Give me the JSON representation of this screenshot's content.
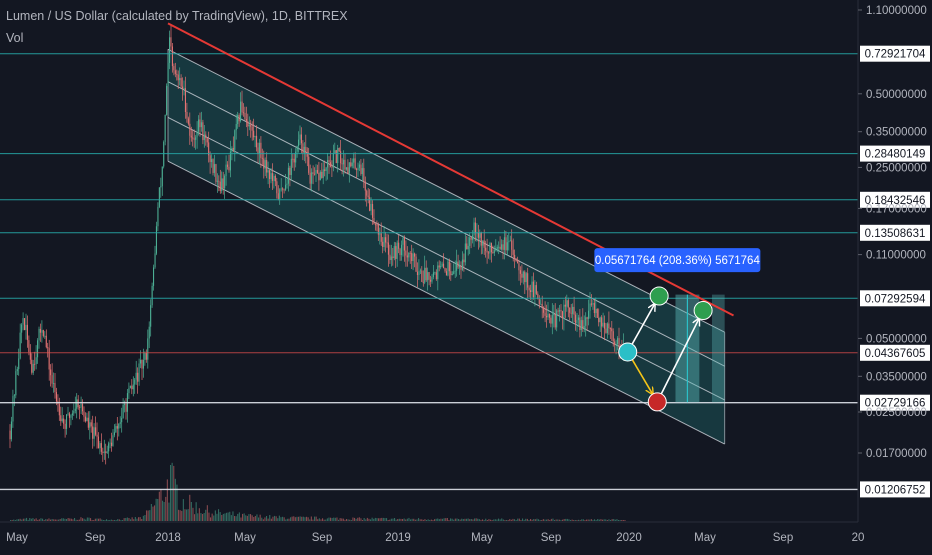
{
  "header": {
    "title": "Lumen / US Dollar (calculated by TradingView), 1D, BITTREX",
    "volume_label": "Vol"
  },
  "colors": {
    "background": "#131722",
    "channel_fill": "#1f6e6e",
    "channel_line": "#d1d4dc",
    "resistance_line": "#e53935",
    "horizontal_level": "#26a6a6",
    "white_level": "#e0e3eb",
    "red_level": "#ef5350",
    "candle_up": "#4caf94",
    "candle_down": "#e57373",
    "label_box": "#2962ff",
    "axis_text": "#b2b5be",
    "green_marker": "#2e9e4f",
    "cyan_marker": "#2bbfc7",
    "red_marker": "#c62828",
    "arrow_white": "#ffffff",
    "arrow_yellow": "#f5c518"
  },
  "chart_data": {
    "type": "candlestick",
    "title": "Lumen / US Dollar (calculated by TradingView), 1D, BITTREX",
    "y_scale": "log",
    "y_tick_labels": [
      "1.10000000",
      "0.50000000",
      "0.35000000",
      "0.25000000",
      "0.17000000",
      "0.11000000",
      "0.05000000",
      "0.03500000",
      "0.02500000",
      "0.01700000"
    ],
    "y_ticks": [
      1.1,
      0.5,
      0.35,
      0.25,
      0.17,
      0.11,
      0.05,
      0.035,
      0.025,
      0.017
    ],
    "x_tick_labels": [
      "May",
      "Sep",
      "2018",
      "May",
      "Sep",
      "2019",
      "May",
      "Sep",
      "2020",
      "May",
      "Sep",
      "20"
    ],
    "x_ticks": [
      "2017-05-01",
      "2017-09-01",
      "2018-01-01",
      "2018-05-01",
      "2018-09-01",
      "2019-01-01",
      "2019-05-01",
      "2019-09-01",
      "2020-01-01",
      "2020-05-01",
      "2020-09-01",
      "2021-01-01"
    ],
    "levels": [
      {
        "label": "0.72921704",
        "value": 0.72921704,
        "style": "teal"
      },
      {
        "label": "0.28480149",
        "value": 0.28480149,
        "style": "teal"
      },
      {
        "label": "0.18432546",
        "value": 0.18432546,
        "style": "teal"
      },
      {
        "label": "0.13508631",
        "value": 0.13508631,
        "style": "teal"
      },
      {
        "label": "0.07292594",
        "value": 0.07292594,
        "style": "teal"
      },
      {
        "label": "0.04367605",
        "value": 0.04367605,
        "style": "red"
      },
      {
        "label": "0.02729166",
        "value": 0.02729166,
        "style": "white"
      },
      {
        "label": "0.01206752",
        "value": 0.01206752,
        "style": "white"
      }
    ],
    "price_path": [
      [
        "2017-04-20",
        0.021
      ],
      [
        "2017-05-10",
        0.062
      ],
      [
        "2017-05-25",
        0.038
      ],
      [
        "2017-06-10",
        0.058
      ],
      [
        "2017-06-25",
        0.033
      ],
      [
        "2017-07-15",
        0.022
      ],
      [
        "2017-08-05",
        0.028
      ],
      [
        "2017-08-25",
        0.021
      ],
      [
        "2017-09-20",
        0.017
      ],
      [
        "2017-10-10",
        0.022
      ],
      [
        "2017-10-25",
        0.028
      ],
      [
        "2017-11-10",
        0.035
      ],
      [
        "2017-11-25",
        0.042
      ],
      [
        "2017-12-05",
        0.075
      ],
      [
        "2017-12-15",
        0.17
      ],
      [
        "2017-12-22",
        0.24
      ],
      [
        "2017-12-28",
        0.45
      ],
      [
        "2018-01-04",
        0.85
      ],
      [
        "2018-01-08",
        0.62
      ],
      [
        "2018-01-15",
        0.58
      ],
      [
        "2018-01-25",
        0.52
      ],
      [
        "2018-02-06",
        0.32
      ],
      [
        "2018-02-20",
        0.38
      ],
      [
        "2018-03-10",
        0.26
      ],
      [
        "2018-03-25",
        0.21
      ],
      [
        "2018-04-10",
        0.28
      ],
      [
        "2018-04-25",
        0.45
      ],
      [
        "2018-05-10",
        0.36
      ],
      [
        "2018-05-30",
        0.27
      ],
      [
        "2018-06-25",
        0.19
      ],
      [
        "2018-07-15",
        0.26
      ],
      [
        "2018-07-30",
        0.33
      ],
      [
        "2018-08-15",
        0.22
      ],
      [
        "2018-09-05",
        0.24
      ],
      [
        "2018-09-25",
        0.28
      ],
      [
        "2018-10-15",
        0.25
      ],
      [
        "2018-11-01",
        0.26
      ],
      [
        "2018-11-15",
        0.18
      ],
      [
        "2018-12-05",
        0.13
      ],
      [
        "2018-12-20",
        0.11
      ],
      [
        "2019-01-10",
        0.12
      ],
      [
        "2019-02-05",
        0.09
      ],
      [
        "2019-03-01",
        0.095
      ],
      [
        "2019-04-01",
        0.1
      ],
      [
        "2019-04-20",
        0.15
      ],
      [
        "2019-05-10",
        0.11
      ],
      [
        "2019-06-01",
        0.125
      ],
      [
        "2019-06-25",
        0.115
      ],
      [
        "2019-07-20",
        0.085
      ],
      [
        "2019-08-15",
        0.07
      ],
      [
        "2019-09-05",
        0.058
      ],
      [
        "2019-09-25",
        0.068
      ],
      [
        "2019-10-20",
        0.054
      ],
      [
        "2019-11-05",
        0.07
      ],
      [
        "2019-11-20",
        0.058
      ],
      [
        "2019-12-10",
        0.049
      ],
      [
        "2019-12-25",
        0.046
      ]
    ],
    "volume_path": [
      [
        "2017-04-20",
        0.02
      ],
      [
        "2017-05-15",
        0.05
      ],
      [
        "2017-07-01",
        0.04
      ],
      [
        "2017-08-15",
        0.06
      ],
      [
        "2017-10-01",
        0.03
      ],
      [
        "2017-11-20",
        0.08
      ],
      [
        "2017-12-20",
        0.6
      ],
      [
        "2018-01-05",
        1.0
      ],
      [
        "2018-01-20",
        0.5
      ],
      [
        "2018-02-10",
        0.35
      ],
      [
        "2018-03-10",
        0.2
      ],
      [
        "2018-05-01",
        0.12
      ],
      [
        "2018-07-01",
        0.08
      ],
      [
        "2018-10-01",
        0.06
      ],
      [
        "2019-01-01",
        0.05
      ],
      [
        "2019-06-01",
        0.04
      ],
      [
        "2019-12-25",
        0.03
      ]
    ],
    "resistance_line": {
      "from": [
        "2018-01-01",
        0.97
      ],
      "to": [
        "2020-06-15",
        0.062
      ]
    },
    "channel": {
      "upper": {
        "from": [
          "2018-01-01",
          0.76
        ],
        "to": [
          "2020-06-01",
          0.053
        ]
      },
      "middle_lines": [
        {
          "from": [
            "2018-01-01",
            0.56
          ],
          "to": [
            "2020-06-01",
            0.0385
          ]
        },
        {
          "from": [
            "2018-01-01",
            0.4
          ],
          "to": [
            "2020-06-01",
            0.028
          ]
        }
      ],
      "lower": {
        "from": [
          "2018-01-01",
          0.265
        ],
        "to": [
          "2020-06-01",
          0.0185
        ]
      },
      "left_date": "2018-01-01",
      "right_date": "2020-06-01"
    },
    "projection": {
      "label": "0.05671764 (208.36%) 5671764",
      "label_at": [
        "2020-03-18",
        0.1045
      ],
      "box_from": [
        "2020-03-15",
        0.0274
      ],
      "box_to": [
        "2020-04-22",
        0.0755
      ],
      "band_from": [
        "2020-05-12",
        0.0274
      ],
      "band_to": [
        "2020-06-01",
        0.0755
      ]
    },
    "markers": [
      {
        "color": "cyan",
        "at": [
          "2019-12-30",
          0.044
        ]
      },
      {
        "color": "red",
        "at": [
          "2020-02-15",
          0.0275
        ]
      },
      {
        "color": "green",
        "at": [
          "2020-02-18",
          0.0745
        ]
      },
      {
        "color": "green",
        "at": [
          "2020-04-28",
          0.065
        ]
      }
    ],
    "arrows": [
      {
        "color": "yellow",
        "from": [
          "2019-12-30",
          0.044
        ],
        "to": [
          "2020-02-15",
          0.0275
        ]
      },
      {
        "color": "white",
        "from": [
          "2019-12-30",
          0.044
        ],
        "to": [
          "2020-02-18",
          0.0745
        ]
      },
      {
        "color": "white",
        "from": [
          "2020-02-15",
          0.0275
        ],
        "to": [
          "2020-04-28",
          0.065
        ]
      }
    ]
  }
}
